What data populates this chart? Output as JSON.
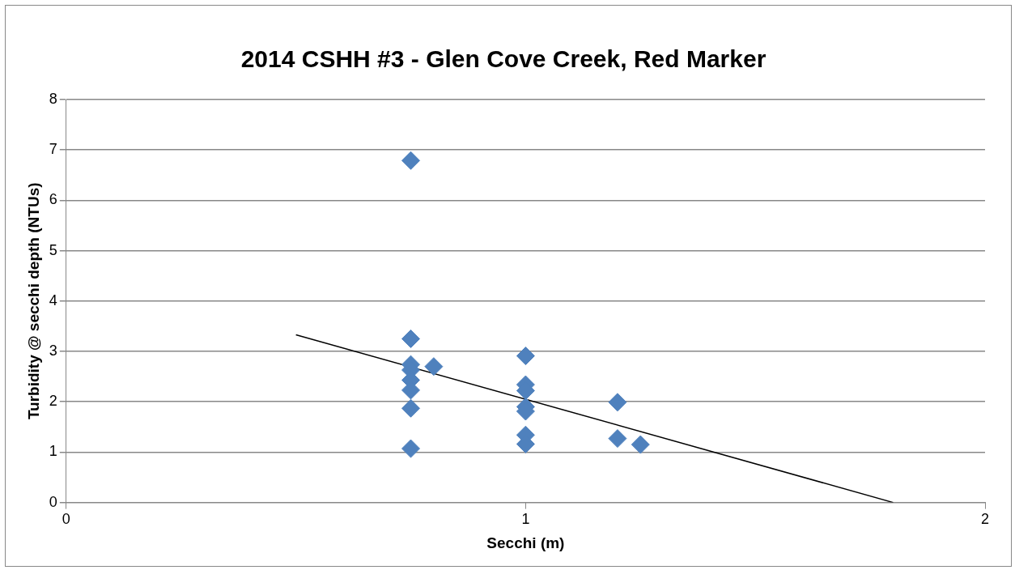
{
  "chart_data": {
    "type": "scatter",
    "title": "2014 CSHH #3 - Glen Cove Creek, Red Marker",
    "xlabel": "Secchi (m)",
    "ylabel": "Turbidity @ secchi depth (NTUs)",
    "xlim": [
      0,
      2
    ],
    "xticks": [
      0,
      1,
      2
    ],
    "ylim": [
      0,
      8
    ],
    "yticks": [
      0,
      1,
      2,
      3,
      4,
      5,
      6,
      7,
      8
    ],
    "grid": "y",
    "legend": false,
    "series": [
      {
        "marker": "diamond",
        "color": "#4f81bd",
        "x": [
          0.75,
          0.75,
          0.75,
          0.75,
          0.75,
          0.75,
          0.75,
          0.75,
          0.8,
          1,
          1,
          1,
          1,
          1,
          1,
          1,
          1.2,
          1.2,
          1.25
        ],
        "values": [
          6.79,
          3.25,
          2.74,
          2.63,
          2.43,
          2.23,
          1.87,
          1.07,
          2.7,
          2.91,
          2.34,
          2.22,
          1.9,
          1.81,
          1.34,
          1.16,
          1.99,
          1.27,
          1.15
        ]
      },
      {
        "type": "line",
        "marker": "none",
        "color": "#000000",
        "x": [
          0.5,
          1.8
        ],
        "values": [
          3.33,
          0
        ]
      }
    ]
  }
}
